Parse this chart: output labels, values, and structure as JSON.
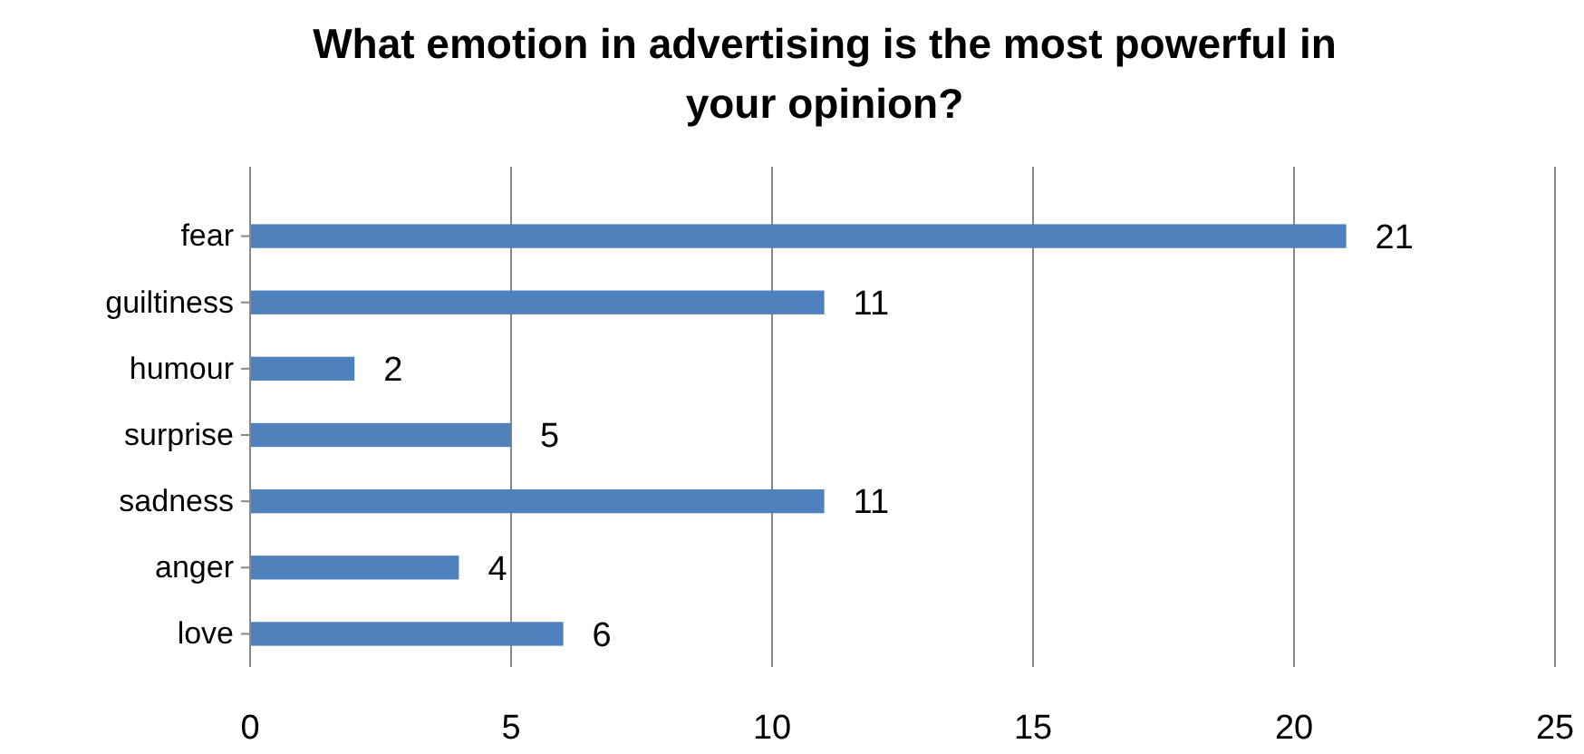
{
  "chart_data": {
    "type": "bar",
    "orientation": "horizontal",
    "title": "What emotion in advertising is the most powerful in your opinion?",
    "categories": [
      "fear",
      "guiltiness",
      "humour",
      "surprise",
      "sadness",
      "anger",
      "love"
    ],
    "values": [
      21,
      11,
      2,
      5,
      11,
      4,
      6
    ],
    "color": "#4f81bd",
    "data_labels": true,
    "xlim": [
      0,
      25
    ],
    "xticks": [
      0,
      5,
      10,
      15,
      20,
      25
    ],
    "grid": "x"
  }
}
